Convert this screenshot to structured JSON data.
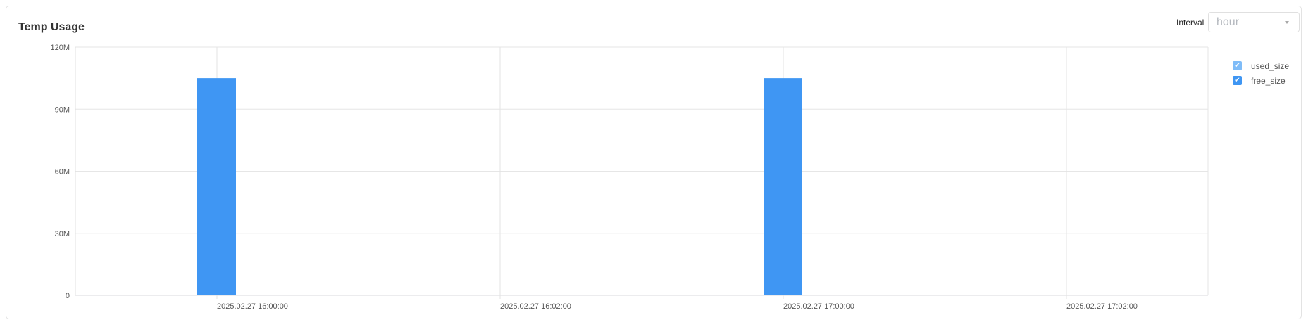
{
  "panel": {
    "title": "Temp Usage",
    "interval_label": "Interval",
    "interval_value": "hour"
  },
  "colors": {
    "used_size": "#7fbcf8",
    "free_size": "#3f96f3"
  },
  "chart_data": {
    "type": "bar",
    "stacked": true,
    "categories": [
      "2025.02.27 16:00:00",
      "2025.02.27 16:02:00",
      "2025.02.27 17:00:00",
      "2025.02.27 17:02:00"
    ],
    "series": [
      {
        "name": "used_size",
        "values": [
          0,
          0,
          0,
          0
        ]
      },
      {
        "name": "free_size",
        "values": [
          105000000,
          0,
          105000000,
          0
        ]
      }
    ],
    "yticks": [
      "0",
      "30M",
      "60M",
      "90M",
      "120M"
    ],
    "ylim": [
      0,
      120000000
    ],
    "grid": true,
    "legend": "right"
  }
}
